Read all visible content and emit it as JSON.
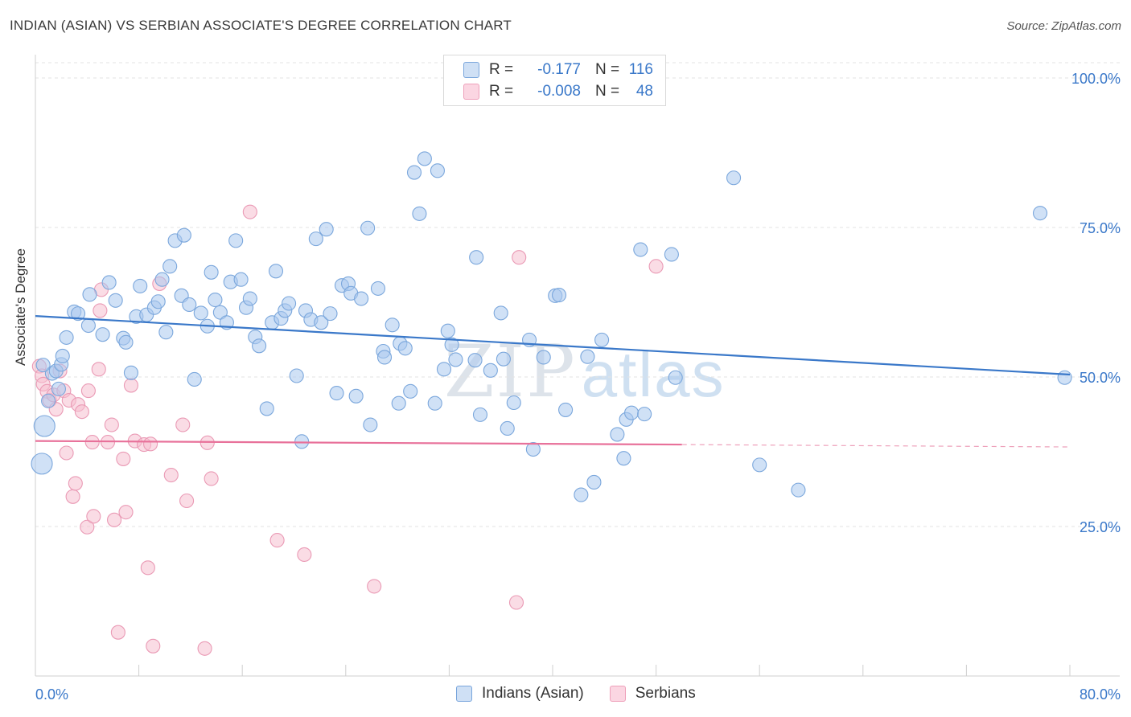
{
  "header": {
    "title": "INDIAN (ASIAN) VS SERBIAN ASSOCIATE'S DEGREE CORRELATION CHART",
    "source": "Source: ZipAtlas.com"
  },
  "watermark": {
    "zip": "ZIP",
    "atlas": "atlas"
  },
  "legend": {
    "rows": [
      {
        "r_label": "R =",
        "r_value": "-0.177",
        "n_label": "N =",
        "n_value": "116",
        "color": "#a9c8ee"
      },
      {
        "r_label": "R =",
        "r_value": "-0.008",
        "n_label": "N =",
        "n_value": "48",
        "color": "#f6bfd0"
      }
    ]
  },
  "bottom_legend": [
    {
      "label": "Indians (Asian)",
      "color": "#a9c8ee"
    },
    {
      "label": "Serbians",
      "color": "#f6bfd0"
    }
  ],
  "chart_data": {
    "type": "scatter",
    "title": "INDIAN (ASIAN) VS SERBIAN ASSOCIATE'S DEGREE CORRELATION CHART",
    "xlabel": "",
    "ylabel": "Associate's Degree",
    "xlim": [
      0,
      80
    ],
    "ylim": [
      0,
      100
    ],
    "x_tick_labels": [
      "0.0%",
      "80.0%"
    ],
    "y_tick_labels": [
      "100.0%",
      "75.0%",
      "50.0%",
      "25.0%"
    ],
    "y_ticks": [
      100,
      75,
      50,
      25
    ],
    "colors": {
      "indians": "#3a78c9",
      "indians_fill": "#a9c8ee",
      "serbians": "#e8719a",
      "serbians_fill": "#f6bfd0"
    },
    "series": [
      {
        "name": "Indians (Asian)",
        "trend": {
          "x0": 0,
          "y0": 60.2,
          "x1": 80,
          "y1": 50.4
        },
        "points": [
          [
            0.5,
            35.5
          ],
          [
            0.7,
            41.8
          ],
          [
            1.0,
            46.0
          ],
          [
            1.3,
            50.6
          ],
          [
            1.6,
            51.0
          ],
          [
            2.0,
            52.1
          ],
          [
            2.1,
            53.5
          ],
          [
            2.4,
            56.6
          ],
          [
            3.0,
            60.9
          ],
          [
            3.3,
            60.6
          ],
          [
            4.1,
            58.6
          ],
          [
            4.2,
            63.8
          ],
          [
            5.2,
            57.1
          ],
          [
            5.7,
            65.8
          ],
          [
            6.2,
            62.8
          ],
          [
            6.8,
            56.5
          ],
          [
            7.0,
            55.8
          ],
          [
            7.4,
            50.7
          ],
          [
            7.8,
            60.1
          ],
          [
            8.1,
            65.2
          ],
          [
            8.6,
            60.4
          ],
          [
            9.2,
            61.6
          ],
          [
            9.5,
            62.6
          ],
          [
            9.8,
            66.3
          ],
          [
            10.1,
            57.5
          ],
          [
            10.4,
            68.5
          ],
          [
            10.8,
            72.8
          ],
          [
            11.3,
            63.6
          ],
          [
            11.5,
            73.7
          ],
          [
            11.9,
            62.1
          ],
          [
            12.3,
            49.6
          ],
          [
            12.8,
            60.7
          ],
          [
            13.3,
            58.5
          ],
          [
            13.6,
            67.5
          ],
          [
            13.9,
            62.9
          ],
          [
            14.3,
            60.8
          ],
          [
            14.8,
            59.1
          ],
          [
            15.1,
            65.9
          ],
          [
            15.5,
            72.8
          ],
          [
            15.9,
            66.3
          ],
          [
            16.3,
            61.6
          ],
          [
            16.6,
            63.1
          ],
          [
            17.0,
            56.7
          ],
          [
            17.3,
            55.2
          ],
          [
            17.9,
            44.7
          ],
          [
            18.3,
            59.1
          ],
          [
            18.6,
            67.7
          ],
          [
            19.0,
            59.8
          ],
          [
            19.3,
            61.1
          ],
          [
            19.6,
            62.3
          ],
          [
            20.2,
            50.2
          ],
          [
            20.6,
            39.2
          ],
          [
            20.9,
            61.1
          ],
          [
            21.3,
            59.6
          ],
          [
            21.7,
            73.1
          ],
          [
            22.1,
            59.1
          ],
          [
            22.5,
            74.7
          ],
          [
            22.8,
            60.6
          ],
          [
            23.3,
            47.3
          ],
          [
            23.7,
            65.3
          ],
          [
            24.2,
            65.6
          ],
          [
            24.4,
            64.0
          ],
          [
            24.8,
            46.8
          ],
          [
            25.2,
            63.1
          ],
          [
            25.7,
            74.9
          ],
          [
            25.9,
            42.0
          ],
          [
            26.5,
            64.8
          ],
          [
            26.9,
            54.3
          ],
          [
            27.0,
            53.3
          ],
          [
            27.6,
            58.7
          ],
          [
            28.1,
            45.6
          ],
          [
            28.2,
            55.6
          ],
          [
            28.6,
            54.8
          ],
          [
            29.0,
            47.6
          ],
          [
            29.3,
            84.2
          ],
          [
            29.7,
            77.3
          ],
          [
            30.1,
            86.5
          ],
          [
            30.9,
            45.6
          ],
          [
            31.1,
            84.5
          ],
          [
            31.6,
            51.3
          ],
          [
            31.9,
            57.7
          ],
          [
            32.2,
            55.4
          ],
          [
            32.5,
            52.9
          ],
          [
            34.0,
            52.8
          ],
          [
            34.1,
            70.0
          ],
          [
            34.4,
            43.7
          ],
          [
            35.2,
            51.1
          ],
          [
            36.0,
            60.7
          ],
          [
            36.2,
            53.0
          ],
          [
            36.5,
            41.4
          ],
          [
            37.0,
            45.7
          ],
          [
            38.2,
            56.2
          ],
          [
            38.5,
            37.9
          ],
          [
            39.3,
            53.3
          ],
          [
            40.2,
            63.6
          ],
          [
            40.5,
            63.7
          ],
          [
            41.0,
            44.5
          ],
          [
            42.2,
            30.3
          ],
          [
            42.7,
            53.4
          ],
          [
            43.2,
            32.4
          ],
          [
            43.8,
            56.2
          ],
          [
            45.0,
            40.4
          ],
          [
            45.5,
            36.4
          ],
          [
            45.7,
            42.9
          ],
          [
            46.1,
            44.0
          ],
          [
            46.8,
            71.3
          ],
          [
            47.1,
            43.8
          ],
          [
            49.2,
            70.5
          ],
          [
            49.5,
            49.9
          ],
          [
            54.0,
            83.3
          ],
          [
            56.0,
            35.3
          ],
          [
            59.0,
            31.1
          ],
          [
            77.7,
            77.4
          ],
          [
            79.6,
            49.9
          ],
          [
            0.6,
            52.0
          ],
          [
            1.8,
            48.0
          ]
        ]
      },
      {
        "name": "Serbians",
        "trend": {
          "x0": 0,
          "y0": 39.3,
          "x1": 50,
          "y1": 38.7,
          "dash_to_x": 80,
          "dash_to_y": 38.3
        },
        "points": [
          [
            0.3,
            51.8
          ],
          [
            0.5,
            50.2
          ],
          [
            0.6,
            48.8
          ],
          [
            0.9,
            47.6
          ],
          [
            1.1,
            46.1
          ],
          [
            1.4,
            47.0
          ],
          [
            1.6,
            44.6
          ],
          [
            1.9,
            51.0
          ],
          [
            2.2,
            47.7
          ],
          [
            2.4,
            37.3
          ],
          [
            2.6,
            46.1
          ],
          [
            2.9,
            30.0
          ],
          [
            3.1,
            32.2
          ],
          [
            3.3,
            45.4
          ],
          [
            3.6,
            44.2
          ],
          [
            4.0,
            24.9
          ],
          [
            4.1,
            47.7
          ],
          [
            4.4,
            39.1
          ],
          [
            4.5,
            26.7
          ],
          [
            4.9,
            51.3
          ],
          [
            5.0,
            61.1
          ],
          [
            5.1,
            64.6
          ],
          [
            5.6,
            39.1
          ],
          [
            5.9,
            42.0
          ],
          [
            6.1,
            26.1
          ],
          [
            6.4,
            7.3
          ],
          [
            6.8,
            36.3
          ],
          [
            7.0,
            27.4
          ],
          [
            7.4,
            48.6
          ],
          [
            7.7,
            39.3
          ],
          [
            8.4,
            38.7
          ],
          [
            8.7,
            18.1
          ],
          [
            8.9,
            38.8
          ],
          [
            9.1,
            5.0
          ],
          [
            9.6,
            65.6
          ],
          [
            10.5,
            33.6
          ],
          [
            11.4,
            42.0
          ],
          [
            11.7,
            29.3
          ],
          [
            13.1,
            4.6
          ],
          [
            13.3,
            39.0
          ],
          [
            13.6,
            33.0
          ],
          [
            16.6,
            77.6
          ],
          [
            18.7,
            22.7
          ],
          [
            20.8,
            20.3
          ],
          [
            26.2,
            15.0
          ],
          [
            37.2,
            12.3
          ],
          [
            37.4,
            70.0
          ],
          [
            48.0,
            68.5
          ]
        ]
      }
    ]
  }
}
